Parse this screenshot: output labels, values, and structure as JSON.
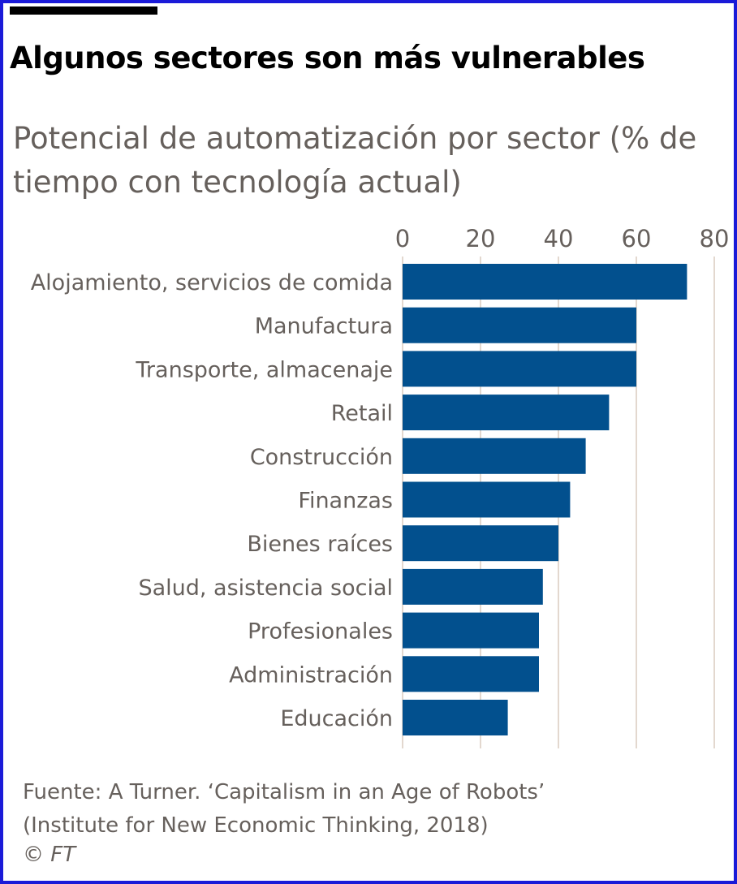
{
  "header": {
    "title": "Algunos sectores son más vulnerables",
    "subtitle": "Potencial de automatización por sector (% de tiempo con tecnología actual)"
  },
  "footer": {
    "source_line1": "Fuente: A Turner. ‘Capitalism in an Age of Robots’",
    "source_line2": "(Institute for New Economic Thinking, 2018)",
    "copyright": "© FT"
  },
  "colors": {
    "bar": "#02508e",
    "grid": "#e3d8cf",
    "text": "#66605c"
  },
  "chart_data": {
    "type": "bar",
    "orientation": "horizontal",
    "title": "Algunos sectores son más vulnerables",
    "subtitle": "Potencial de automatización por sector (% de tiempo con tecnología actual)",
    "categories": [
      "Alojamiento, servicios de comida",
      "Manufactura",
      "Transporte, almacenaje",
      "Retail",
      "Construcción",
      "Finanzas",
      "Bienes raíces",
      "Salud, asistencia social",
      "Profesionales",
      "Administración",
      "Educación"
    ],
    "values": [
      73,
      60,
      60,
      53,
      47,
      43,
      40,
      36,
      35,
      35,
      27
    ],
    "xlim": [
      0,
      80
    ],
    "xticks": [
      0,
      20,
      40,
      60,
      80
    ],
    "tick_labels": [
      "0",
      "20",
      "40",
      "60",
      "80"
    ],
    "axis_position": "top",
    "grid": true
  }
}
